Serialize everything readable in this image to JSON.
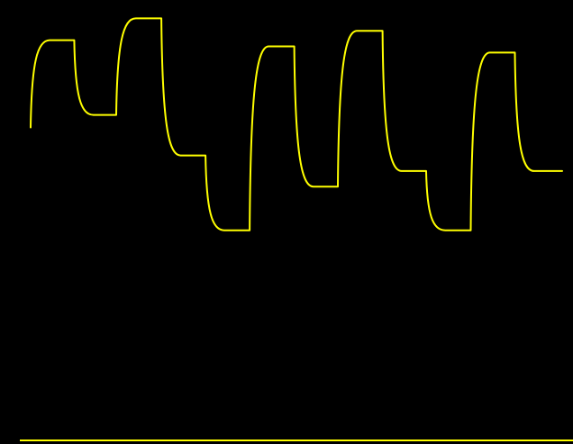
{
  "chart_data": {
    "type": "line",
    "title": "",
    "xlabel": "",
    "ylabel": "",
    "grid": false,
    "legend": "none",
    "axis_visible": "x-only",
    "line_color": "#ffff00",
    "background_color": "#000000",
    "axis_color": "#ffff00",
    "xlim": [
      0,
      100
    ],
    "ylim": [
      0,
      100
    ],
    "series": [
      {
        "style": "step-with-exponential-settling",
        "points": [
          {
            "x": 0,
            "y": 62
          },
          {
            "x": 3.6,
            "y": 90
          },
          {
            "x": 8.2,
            "y": 90
          },
          {
            "x": 11.8,
            "y": 66
          },
          {
            "x": 16.1,
            "y": 66
          },
          {
            "x": 19.8,
            "y": 97
          },
          {
            "x": 24.6,
            "y": 97
          },
          {
            "x": 28.2,
            "y": 53
          },
          {
            "x": 32.9,
            "y": 53
          },
          {
            "x": 36.4,
            "y": 29
          },
          {
            "x": 41.2,
            "y": 29
          },
          {
            "x": 44.8,
            "y": 88
          },
          {
            "x": 49.6,
            "y": 88
          },
          {
            "x": 53.2,
            "y": 43
          },
          {
            "x": 57.8,
            "y": 43
          },
          {
            "x": 61.4,
            "y": 93
          },
          {
            "x": 66.2,
            "y": 93
          },
          {
            "x": 69.8,
            "y": 48
          },
          {
            "x": 74.4,
            "y": 48
          },
          {
            "x": 78.0,
            "y": 29
          },
          {
            "x": 82.8,
            "y": 29
          },
          {
            "x": 86.4,
            "y": 86
          },
          {
            "x": 91.1,
            "y": 86
          },
          {
            "x": 94.7,
            "y": 48
          },
          {
            "x": 100,
            "y": 48
          }
        ]
      }
    ]
  }
}
